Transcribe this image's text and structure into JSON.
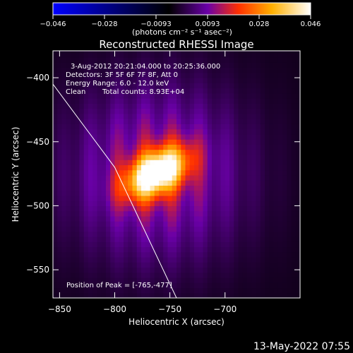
{
  "chart_data": {
    "type": "heatmap",
    "title": "Reconstructed RHESSI Image",
    "xlabel": "Heliocentric X (arcsec)",
    "ylabel": "Heliocentric Y (arcsec)",
    "xlim": [
      -856,
      -632
    ],
    "ylim": [
      -572,
      -379
    ],
    "xticks": [
      -850,
      -800,
      -750,
      -700
    ],
    "yticks": [
      -400,
      -450,
      -500,
      -550
    ],
    "colorbar": {
      "min": -0.046,
      "max": 0.046,
      "ticks": [
        "-0.046",
        "-0.028",
        "-0.0093",
        "0.0093",
        "0.028",
        "0.046"
      ],
      "unit_label": "(photons cm⁻² s⁻¹ asec⁻²)",
      "colors": [
        "#0000ff",
        "#000000",
        "#6a00a8",
        "#ff3000",
        "#ffb000",
        "#ffffff"
      ]
    },
    "annotations": {
      "time_range": "3-Aug-2012 20:21:04.000 to 20:25:36.000",
      "detectors": "Detectors: 3F 5F 6F 7F 8F, Att 0",
      "energy_range": "Energy Range: 6.0 - 12.0 keV",
      "clean_label": "Clean",
      "total_counts": "Total counts: 8.93E+04",
      "peak_position": "Position of Peak = [-765,-477]"
    },
    "peak": {
      "x": -765,
      "y": -477
    },
    "source": {
      "center_x": -762,
      "center_y": -474,
      "angle_deg": 25,
      "peak_value": 0.046
    },
    "limb": [
      [
        -856,
        -405
      ],
      [
        -800,
        -470
      ],
      [
        -744,
        -572
      ]
    ]
  },
  "footer_date": "13-May-2022 07:55"
}
